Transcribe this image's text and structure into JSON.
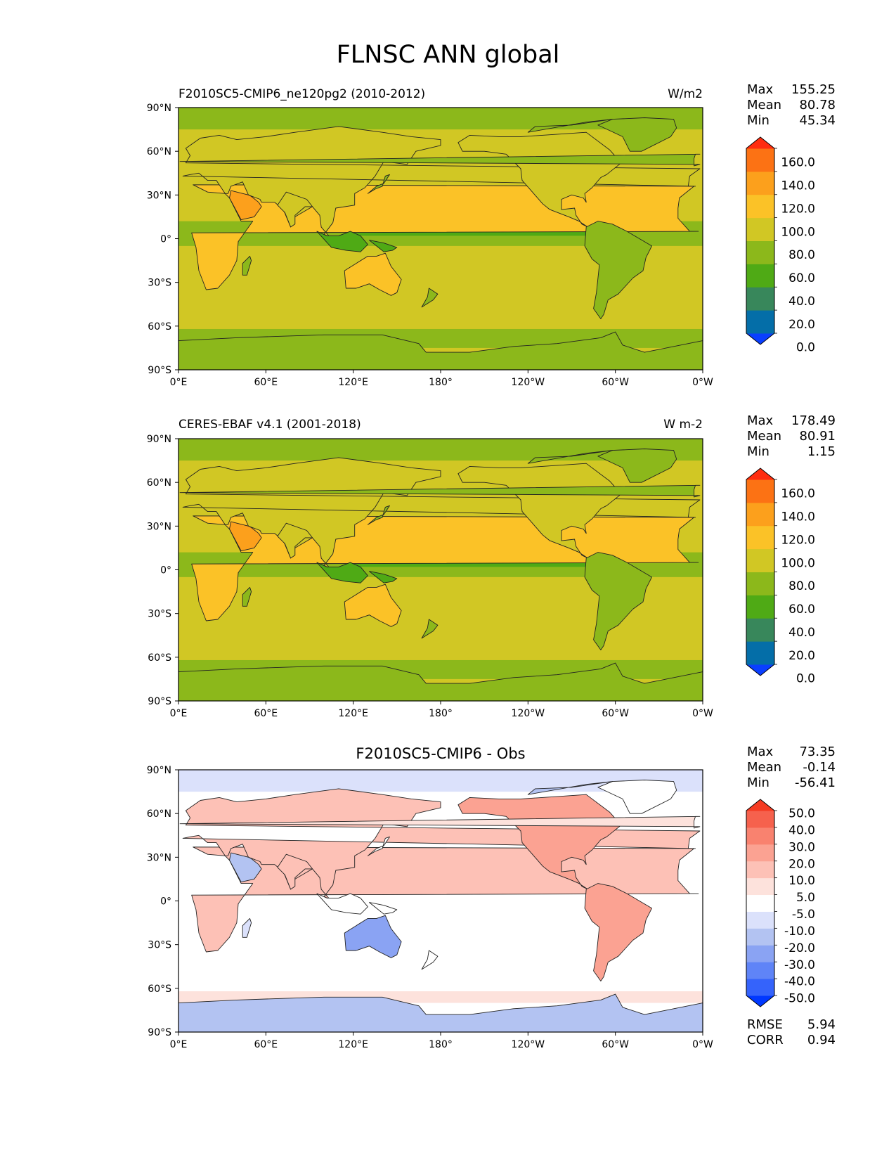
{
  "figure": {
    "title": "FLNSC ANN global"
  },
  "axes": {
    "lat_ticks": [
      "90°N",
      "60°N",
      "30°N",
      "0°",
      "30°S",
      "60°S",
      "90°S"
    ],
    "lon_ticks": [
      "0°E",
      "60°E",
      "120°E",
      "180°",
      "120°W",
      "60°W",
      "0°W"
    ]
  },
  "colors": {
    "abs_levels": [
      "#0a3fff",
      "#046ea8",
      "#38875b",
      "#4faa15",
      "#8cb81b",
      "#d1c724",
      "#fbc227",
      "#fca01c",
      "#fc7214",
      "#ff2d10"
    ],
    "diff_levels": [
      "#0038ff",
      "#3563fb",
      "#5f84f7",
      "#8aa3f3",
      "#b3c3f2",
      "#dbe1fb",
      "#ffffff",
      "#fde2dc",
      "#fdc1b6",
      "#fba292",
      "#f9826f",
      "#f6614d",
      "#f53b22"
    ]
  },
  "panels": [
    {
      "left_title": "F2010SC5-CMIP6_ne120pg2 (2010-2012)",
      "right_title": "W/m2",
      "stats": [
        {
          "label": "Max",
          "value": "155.25"
        },
        {
          "label": "Mean",
          "value": "80.78"
        },
        {
          "label": "Min",
          "value": "45.34"
        }
      ],
      "colorbar_labels": [
        "160.0",
        "140.0",
        "120.0",
        "100.0",
        "80.0",
        "60.0",
        "40.0",
        "20.0",
        "0.0"
      ]
    },
    {
      "left_title": "CERES-EBAF v4.1 (2001-2018)",
      "right_title": "W m-2",
      "stats": [
        {
          "label": "Max",
          "value": "178.49"
        },
        {
          "label": "Mean",
          "value": "80.91"
        },
        {
          "label": "Min",
          "value": "1.15"
        }
      ],
      "colorbar_labels": [
        "160.0",
        "140.0",
        "120.0",
        "100.0",
        "80.0",
        "60.0",
        "40.0",
        "20.0",
        "0.0"
      ]
    },
    {
      "center_title": "F2010SC5-CMIP6 - Obs",
      "stats": [
        {
          "label": "Max",
          "value": "73.35"
        },
        {
          "label": "Mean",
          "value": "-0.14"
        },
        {
          "label": "Min",
          "value": "-56.41"
        }
      ],
      "colorbar_labels": [
        "50.0",
        "40.0",
        "30.0",
        "20.0",
        "10.0",
        "5.0",
        "-5.0",
        "-10.0",
        "-20.0",
        "-30.0",
        "-40.0",
        "-50.0"
      ],
      "metrics": [
        {
          "label": "RMSE",
          "value": "5.94"
        },
        {
          "label": "CORR",
          "value": "0.94"
        }
      ]
    }
  ]
}
